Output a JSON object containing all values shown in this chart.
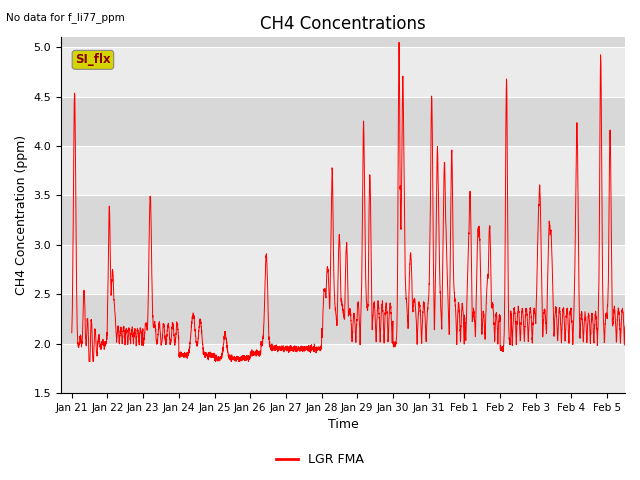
{
  "title": "CH4 Concentrations",
  "xlabel": "Time",
  "ylabel": "CH4 Concentration (ppm)",
  "ylim": [
    1.5,
    5.1
  ],
  "yticks": [
    1.5,
    2.0,
    2.5,
    3.0,
    3.5,
    4.0,
    4.5,
    5.0
  ],
  "xtick_labels": [
    "Jan 21",
    "Jan 22",
    "Jan 23",
    "Jan 24",
    "Jan 25",
    "Jan 26",
    "Jan 27",
    "Jan 28",
    "Jan 29",
    "Jan 30",
    "Jan 31",
    "Feb 1",
    "Feb 2",
    "Feb 3",
    "Feb 4",
    "Feb 5"
  ],
  "top_left_text": "No data for f_li77_ppm",
  "legend_label": "LGR FMA",
  "line_color": "#ff0000",
  "plot_bg_color_dark": "#d8d8d8",
  "plot_bg_color_light": "#ebebeb",
  "fig_bg_color": "#ffffff",
  "grid_color": "#ffffff",
  "si_flx_box_facecolor": "#d4d400",
  "si_flx_box_edgecolor": "#888888",
  "si_flx_text_color": "#8b0000",
  "si_flx_label": "SI_flx",
  "title_fontsize": 12,
  "label_fontsize": 9,
  "tick_fontsize": 8
}
